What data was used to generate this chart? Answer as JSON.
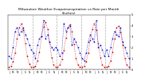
{
  "title": "Milwaukee Weather Evapotranspiration vs Rain per Month\n(Inches)",
  "title_fontsize": 3.2,
  "years": [
    2018,
    2019,
    2020,
    2021,
    2022
  ],
  "et": [
    0.2,
    0.3,
    0.7,
    1.5,
    2.8,
    3.8,
    4.2,
    3.6,
    2.4,
    1.2,
    0.5,
    0.2,
    0.2,
    0.3,
    0.8,
    1.6,
    3.0,
    3.9,
    4.3,
    3.7,
    2.5,
    1.1,
    0.4,
    0.2,
    0.2,
    0.4,
    0.9,
    1.7,
    2.9,
    3.8,
    4.1,
    3.5,
    2.3,
    1.0,
    0.4,
    0.2,
    0.2,
    0.3,
    0.7,
    1.5,
    2.7,
    3.7,
    4.2,
    3.6,
    2.4,
    1.1,
    0.4,
    0.2,
    0.2,
    0.3,
    0.8,
    1.6,
    2.8,
    3.8,
    4.0,
    3.4,
    2.2,
    1.0,
    0.4,
    0.2
  ],
  "rain": [
    1.2,
    1.0,
    2.0,
    3.5,
    3.8,
    3.2,
    3.5,
    3.8,
    3.2,
    2.8,
    2.2,
    1.8,
    1.5,
    1.0,
    2.2,
    2.8,
    3.0,
    4.5,
    2.8,
    3.2,
    2.5,
    2.0,
    1.8,
    2.0,
    1.8,
    1.2,
    1.5,
    4.2,
    3.5,
    3.8,
    4.0,
    2.2,
    2.8,
    2.5,
    2.0,
    1.5,
    1.0,
    0.8,
    1.5,
    2.5,
    3.2,
    2.8,
    2.5,
    4.5,
    2.0,
    2.2,
    1.8,
    1.2,
    1.8,
    1.2,
    2.0,
    2.8,
    3.5,
    3.2,
    3.0,
    3.8,
    2.5,
    2.0,
    1.5,
    1.0
  ],
  "et_color": "#cc0000",
  "rain_color": "#0000cc",
  "bg_color": "#ffffff",
  "vline_color": "#aaaaaa",
  "ylim": [
    0,
    5
  ],
  "yticks": [
    0,
    1,
    2,
    3,
    4,
    5
  ],
  "ytick_labels": [
    "0",
    "1",
    "2",
    "3",
    "4",
    "5"
  ],
  "dot_size": 2.5,
  "month_abbr": [
    "J",
    "F",
    "M",
    "A",
    "M",
    "J",
    "J",
    "A",
    "S",
    "O",
    "N",
    "D"
  ]
}
